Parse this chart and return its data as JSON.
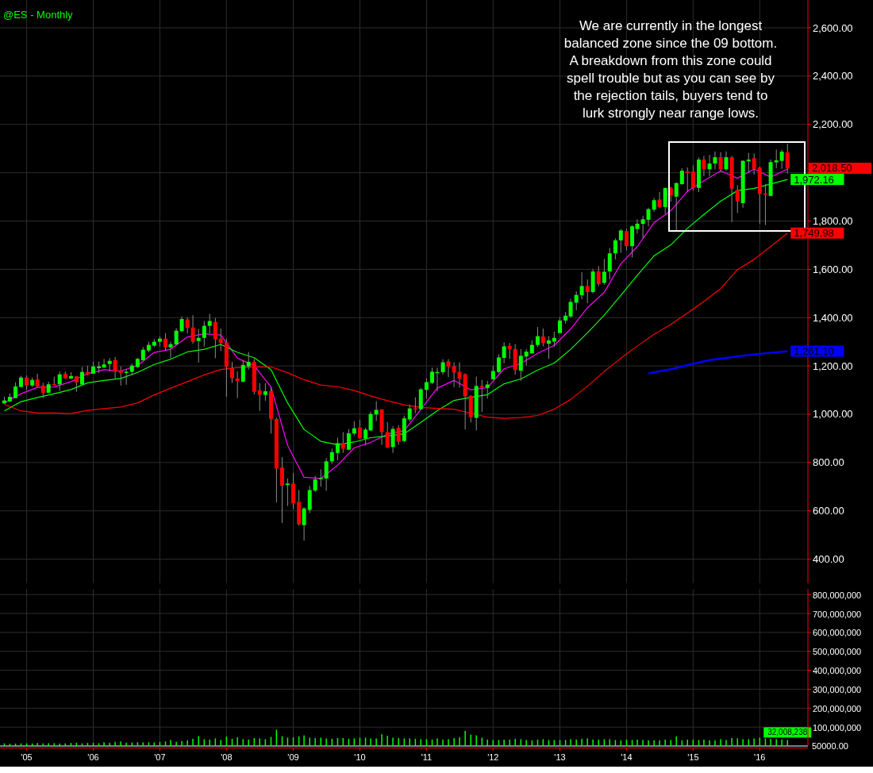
{
  "chart_data": [
    {
      "type": "candlestick",
      "title": "@ES - Monthly",
      "x": [
        "2004-09",
        "2004-10",
        "2004-11",
        "2004-12",
        "2005-01",
        "2005-02",
        "2005-03",
        "2005-04",
        "2005-05",
        "2005-06",
        "2005-07",
        "2005-08",
        "2005-09",
        "2005-10",
        "2005-11",
        "2005-12",
        "2006-01",
        "2006-02",
        "2006-03",
        "2006-04",
        "2006-05",
        "2006-06",
        "2006-07",
        "2006-08",
        "2006-09",
        "2006-10",
        "2006-11",
        "2006-12",
        "2007-01",
        "2007-02",
        "2007-03",
        "2007-04",
        "2007-05",
        "2007-06",
        "2007-07",
        "2007-08",
        "2007-09",
        "2007-10",
        "2007-11",
        "2007-12",
        "2008-01",
        "2008-02",
        "2008-03",
        "2008-04",
        "2008-05",
        "2008-06",
        "2008-07",
        "2008-08",
        "2008-09",
        "2008-10",
        "2008-11",
        "2008-12",
        "2009-01",
        "2009-02",
        "2009-03",
        "2009-04",
        "2009-05",
        "2009-06",
        "2009-07",
        "2009-08",
        "2009-09",
        "2009-10",
        "2009-11",
        "2009-12",
        "2010-01",
        "2010-02",
        "2010-03",
        "2010-04",
        "2010-05",
        "2010-06",
        "2010-07",
        "2010-08",
        "2010-09",
        "2010-10",
        "2010-11",
        "2010-12",
        "2011-01",
        "2011-02",
        "2011-03",
        "2011-04",
        "2011-05",
        "2011-06",
        "2011-07",
        "2011-08",
        "2011-09",
        "2011-10",
        "2011-11",
        "2011-12",
        "2012-01",
        "2012-02",
        "2012-03",
        "2012-04",
        "2012-05",
        "2012-06",
        "2012-07",
        "2012-08",
        "2012-09",
        "2012-10",
        "2012-11",
        "2012-12",
        "2013-01",
        "2013-02",
        "2013-03",
        "2013-04",
        "2013-05",
        "2013-06",
        "2013-07",
        "2013-08",
        "2013-09",
        "2013-10",
        "2013-11",
        "2013-12",
        "2014-01",
        "2014-02",
        "2014-03",
        "2014-04",
        "2014-05",
        "2014-06",
        "2014-07",
        "2014-08",
        "2014-09",
        "2014-10",
        "2014-11",
        "2014-12",
        "2015-01",
        "2015-02",
        "2015-03",
        "2015-04",
        "2015-05",
        "2015-06",
        "2015-07",
        "2015-08",
        "2015-09",
        "2015-10",
        "2015-11",
        "2015-12",
        "2016-01",
        "2016-02",
        "2016-03",
        "2016-04",
        "2016-05",
        "2016-06"
      ],
      "ohlc": [
        [
          1045,
          1073,
          1043,
          1057
        ],
        [
          1053,
          1086,
          1050,
          1072
        ],
        [
          1067,
          1132,
          1067,
          1115
        ],
        [
          1113,
          1159,
          1111,
          1152
        ],
        [
          1152,
          1161,
          1100,
          1119
        ],
        [
          1119,
          1152,
          1113,
          1142
        ],
        [
          1144,
          1168,
          1113,
          1115
        ],
        [
          1119,
          1130,
          1067,
          1089
        ],
        [
          1089,
          1135,
          1089,
          1124
        ],
        [
          1125,
          1155,
          1120,
          1122
        ],
        [
          1124,
          1177,
          1097,
          1165
        ],
        [
          1168,
          1177,
          1146,
          1149
        ],
        [
          1148,
          1174,
          1146,
          1158
        ],
        [
          1157,
          1159,
          1093,
          1132
        ],
        [
          1123,
          1196,
          1123,
          1175
        ],
        [
          1175,
          1201,
          1161,
          1165
        ],
        [
          1168,
          1218,
          1168,
          1198
        ],
        [
          1191,
          1218,
          1170,
          1198
        ],
        [
          1194,
          1229,
          1192,
          1206
        ],
        [
          1208,
          1232,
          1177,
          1221
        ],
        [
          1224,
          1237,
          1146,
          1176
        ],
        [
          1181,
          1198,
          1119,
          1171
        ],
        [
          1171,
          1188,
          1122,
          1176
        ],
        [
          1176,
          1210,
          1162,
          1201
        ],
        [
          1196,
          1234,
          1192,
          1229
        ],
        [
          1224,
          1278,
          1223,
          1267
        ],
        [
          1264,
          1300,
          1256,
          1287
        ],
        [
          1284,
          1311,
          1278,
          1300
        ],
        [
          1300,
          1322,
          1281,
          1313
        ],
        [
          1313,
          1336,
          1262,
          1278
        ],
        [
          1277,
          1300,
          1232,
          1290
        ],
        [
          1289,
          1357,
          1289,
          1346
        ],
        [
          1344,
          1405,
          1340,
          1394
        ],
        [
          1392,
          1402,
          1335,
          1357
        ],
        [
          1359,
          1410,
          1292,
          1300
        ],
        [
          1303,
          1353,
          1214,
          1316
        ],
        [
          1316,
          1386,
          1280,
          1366
        ],
        [
          1366,
          1416,
          1335,
          1386
        ],
        [
          1382,
          1399,
          1232,
          1311
        ],
        [
          1313,
          1355,
          1262,
          1295
        ],
        [
          1297,
          1313,
          1072,
          1196
        ],
        [
          1190,
          1217,
          1130,
          1149
        ],
        [
          1148,
          1177,
          1067,
          1138
        ],
        [
          1135,
          1223,
          1130,
          1204
        ],
        [
          1198,
          1258,
          1185,
          1217
        ],
        [
          1217,
          1229,
          1082,
          1093
        ],
        [
          1099,
          1129,
          1014,
          1080
        ],
        [
          1080,
          1129,
          1056,
          1095
        ],
        [
          1095,
          1113,
          920,
          981
        ],
        [
          980,
          986,
          635,
          775
        ],
        [
          779,
          822,
          550,
          704
        ],
        [
          707,
          734,
          620,
          713
        ],
        [
          713,
          756,
          607,
          631
        ],
        [
          637,
          686,
          539,
          545
        ],
        [
          541,
          615,
          477,
          610
        ],
        [
          604,
          703,
          591,
          686
        ],
        [
          684,
          745,
          678,
          730
        ],
        [
          731,
          772,
          700,
          736
        ],
        [
          734,
          818,
          683,
          805
        ],
        [
          805,
          858,
          795,
          843
        ],
        [
          840,
          903,
          809,
          880
        ],
        [
          880,
          926,
          840,
          857
        ],
        [
          853,
          939,
          851,
          921
        ],
        [
          920,
          972,
          911,
          942
        ],
        [
          945,
          977,
          898,
          900
        ],
        [
          899,
          944,
          873,
          936
        ],
        [
          933,
          1010,
          930,
          1001
        ],
        [
          999,
          1054,
          972,
          1018
        ],
        [
          1020,
          1021,
          873,
          926
        ],
        [
          926,
          968,
          860,
          862
        ],
        [
          864,
          950,
          840,
          939
        ],
        [
          944,
          955,
          873,
          886
        ],
        [
          889,
          994,
          884,
          983
        ],
        [
          979,
          1040,
          970,
          1024
        ],
        [
          1024,
          1070,
          1005,
          1021
        ],
        [
          1021,
          1109,
          1016,
          1103
        ],
        [
          1101,
          1149,
          1065,
          1133
        ],
        [
          1130,
          1193,
          1125,
          1176
        ],
        [
          1172,
          1193,
          1095,
          1175
        ],
        [
          1174,
          1228,
          1164,
          1215
        ],
        [
          1219,
          1228,
          1153,
          1197
        ],
        [
          1199,
          1215,
          1112,
          1173
        ],
        [
          1175,
          1215,
          1111,
          1147
        ],
        [
          1166,
          1169,
          937,
          1074
        ],
        [
          1076,
          1079,
          966,
          988
        ],
        [
          985,
          1156,
          933,
          1117
        ],
        [
          1117,
          1142,
          1010,
          1110
        ],
        [
          1109,
          1138,
          1065,
          1123
        ],
        [
          1145,
          1200,
          1142,
          1179
        ],
        [
          1175,
          1248,
          1169,
          1235
        ],
        [
          1233,
          1298,
          1211,
          1281
        ],
        [
          1283,
          1295,
          1229,
          1270
        ],
        [
          1270,
          1290,
          1163,
          1183
        ],
        [
          1180,
          1270,
          1138,
          1242
        ],
        [
          1239,
          1270,
          1202,
          1259
        ],
        [
          1252,
          1306,
          1251,
          1287
        ],
        [
          1287,
          1361,
          1279,
          1323
        ],
        [
          1322,
          1355,
          1281,
          1295
        ],
        [
          1292,
          1323,
          1229,
          1306
        ],
        [
          1301,
          1342,
          1279,
          1316
        ],
        [
          1336,
          1402,
          1336,
          1388
        ],
        [
          1388,
          1423,
          1375,
          1408
        ],
        [
          1405,
          1478,
          1399,
          1465
        ],
        [
          1462,
          1509,
          1430,
          1494
        ],
        [
          1493,
          1588,
          1476,
          1531
        ],
        [
          1531,
          1558,
          1460,
          1506
        ],
        [
          1506,
          1602,
          1500,
          1591
        ],
        [
          1592,
          1613,
          1531,
          1539
        ],
        [
          1544,
          1643,
          1536,
          1590
        ],
        [
          1591,
          1688,
          1558,
          1666
        ],
        [
          1666,
          1728,
          1641,
          1720
        ],
        [
          1720,
          1767,
          1668,
          1761
        ],
        [
          1758,
          1767,
          1679,
          1696
        ],
        [
          1696,
          1783,
          1649,
          1778
        ],
        [
          1767,
          1807,
          1748,
          1789
        ],
        [
          1788,
          1822,
          1728,
          1807
        ],
        [
          1805,
          1855,
          1778,
          1849
        ],
        [
          1847,
          1896,
          1838,
          1886
        ],
        [
          1889,
          1920,
          1855,
          1858
        ],
        [
          1858,
          1940,
          1829,
          1936
        ],
        [
          1937,
          1942,
          1880,
          1906
        ],
        [
          1901,
          1959,
          1759,
          1957
        ],
        [
          1953,
          2019,
          1950,
          2008
        ],
        [
          2005,
          2022,
          1920,
          1999
        ],
        [
          2005,
          2030,
          1926,
          1937
        ],
        [
          1937,
          2063,
          1920,
          2054
        ],
        [
          2054,
          2069,
          1986,
          2014
        ],
        [
          2014,
          2074,
          1986,
          2038
        ],
        [
          2038,
          2088,
          2014,
          2064
        ],
        [
          2064,
          2085,
          2003,
          2014
        ],
        [
          2014,
          2088,
          2008,
          2064
        ],
        [
          2064,
          2069,
          1796,
          1934
        ],
        [
          1928,
          1948,
          1833,
          1882
        ],
        [
          1874,
          2052,
          1855,
          2049
        ],
        [
          2047,
          2082,
          2003,
          2054
        ],
        [
          2060,
          2080,
          1992,
          2016
        ],
        [
          2021,
          2025,
          1789,
          1912
        ],
        [
          1914,
          1953,
          1783,
          1911
        ],
        [
          1904,
          2055,
          1902,
          2044
        ],
        [
          2043,
          2096,
          2019,
          2051
        ],
        [
          2049,
          2096,
          2016,
          2087
        ],
        [
          2084,
          2120,
          1997,
          2018.5
        ]
      ],
      "series": [
        {
          "type": "line",
          "color": "#ff00ff",
          "x": [
            "2004-09",
            "2004-12",
            "2005-03",
            "2005-06",
            "2005-09",
            "2005-12",
            "2006-03",
            "2006-06",
            "2006-09",
            "2006-12",
            "2007-03",
            "2007-06",
            "2007-09",
            "2007-12",
            "2008-03",
            "2008-06",
            "2008-09",
            "2008-12",
            "2009-03",
            "2009-06",
            "2009-09",
            "2009-12",
            "2010-03",
            "2010-06",
            "2010-09",
            "2010-12",
            "2011-03",
            "2011-06",
            "2011-09",
            "2011-12",
            "2012-03",
            "2012-06",
            "2012-09",
            "2012-12",
            "2013-03",
            "2013-06",
            "2013-09",
            "2013-12",
            "2014-03",
            "2014-06",
            "2014-09",
            "2014-12",
            "2015-03",
            "2015-06",
            "2015-09",
            "2015-12",
            "2016-03",
            "2016-06"
          ],
          "values": [
            1047,
            1085,
            1111,
            1113,
            1135,
            1168,
            1184,
            1179,
            1201,
            1256,
            1269,
            1320,
            1333,
            1328,
            1232,
            1201,
            1113,
            871,
            739,
            734,
            789,
            861,
            883,
            918,
            932,
            1020,
            1108,
            1140,
            1101,
            1110,
            1188,
            1210,
            1252,
            1285,
            1353,
            1441,
            1505,
            1623,
            1694,
            1793,
            1843,
            1923,
            1967,
            2008,
            1977,
            2015,
            1982,
            2015
          ]
        },
        {
          "type": "line",
          "color": "#00ff00",
          "x": [
            "2004-09",
            "2004-12",
            "2005-03",
            "2005-06",
            "2005-09",
            "2005-12",
            "2006-03",
            "2006-06",
            "2006-09",
            "2006-12",
            "2007-03",
            "2007-06",
            "2007-09",
            "2007-12",
            "2008-03",
            "2008-06",
            "2008-09",
            "2008-12",
            "2009-03",
            "2009-06",
            "2009-09",
            "2009-12",
            "2010-03",
            "2010-06",
            "2010-09",
            "2010-12",
            "2011-03",
            "2011-06",
            "2011-09",
            "2011-12",
            "2012-03",
            "2012-06",
            "2012-09",
            "2012-12",
            "2013-03",
            "2013-06",
            "2013-09",
            "2013-12",
            "2014-03",
            "2014-06",
            "2014-09",
            "2014-12",
            "2015-03",
            "2015-06",
            "2015-09",
            "2015-12",
            "2016-03",
            "2016-06"
          ],
          "values": [
            1014,
            1052,
            1069,
            1085,
            1102,
            1130,
            1140,
            1148,
            1173,
            1206,
            1228,
            1258,
            1269,
            1289,
            1256,
            1234,
            1185,
            1047,
            937,
            888,
            874,
            885,
            903,
            910,
            919,
            966,
            1015,
            1057,
            1070,
            1081,
            1126,
            1146,
            1183,
            1212,
            1269,
            1337,
            1410,
            1492,
            1575,
            1656,
            1701,
            1770,
            1827,
            1882,
            1926,
            1935,
            1953,
            1972.16
          ],
          "value_labels": [
            null,
            null,
            null,
            null,
            null,
            null,
            null,
            null,
            null,
            null,
            null,
            null,
            null,
            null,
            null,
            null,
            null,
            null,
            null,
            null,
            null,
            null,
            null,
            null,
            null,
            null,
            null,
            null,
            null,
            null,
            null,
            null,
            null,
            null,
            null,
            null,
            null,
            null,
            null,
            null,
            null,
            null,
            null,
            null,
            null,
            null,
            null,
            "1,972.16"
          ]
        },
        {
          "type": "line",
          "color": "#ff0000",
          "x": [
            "2004-09",
            "2004-12",
            "2005-03",
            "2005-06",
            "2005-09",
            "2005-12",
            "2006-03",
            "2006-06",
            "2006-09",
            "2006-12",
            "2007-03",
            "2007-06",
            "2007-09",
            "2007-12",
            "2008-03",
            "2008-06",
            "2008-09",
            "2008-12",
            "2009-03",
            "2009-06",
            "2009-09",
            "2009-12",
            "2010-03",
            "2010-06",
            "2010-09",
            "2010-12",
            "2011-03",
            "2011-06",
            "2011-09",
            "2011-12",
            "2012-03",
            "2012-06",
            "2012-09",
            "2012-12",
            "2013-03",
            "2013-06",
            "2013-09",
            "2013-12",
            "2014-03",
            "2014-06",
            "2014-09",
            "2014-12",
            "2015-03",
            "2015-06",
            "2015-09",
            "2015-12",
            "2016-03",
            "2016-06"
          ],
          "values": [
            1041,
            1014,
            1005,
            1005,
            1003,
            1016,
            1023,
            1030,
            1047,
            1080,
            1108,
            1135,
            1163,
            1185,
            1193,
            1196,
            1196,
            1172,
            1143,
            1121,
            1114,
            1098,
            1076,
            1056,
            1039,
            1028,
            1024,
            1021,
            1004,
            988,
            983,
            986,
            995,
            1021,
            1061,
            1116,
            1177,
            1232,
            1282,
            1331,
            1372,
            1419,
            1467,
            1520,
            1599,
            1641,
            1695,
            1749.98
          ],
          "value_labels": [
            null,
            null,
            null,
            null,
            null,
            null,
            null,
            null,
            null,
            null,
            null,
            null,
            null,
            null,
            null,
            null,
            null,
            null,
            null,
            null,
            null,
            null,
            null,
            null,
            null,
            null,
            null,
            null,
            null,
            null,
            null,
            null,
            null,
            null,
            null,
            null,
            null,
            null,
            null,
            null,
            null,
            null,
            null,
            null,
            null,
            null,
            null,
            "1,749.98"
          ]
        },
        {
          "type": "line",
          "color": "#0000ff",
          "x": [
            "2014-05",
            "2014-09",
            "2014-11",
            "2015-04",
            "2015-09",
            "2016-01",
            "2016-06"
          ],
          "values": [
            1169,
            1186,
            1198,
            1224,
            1240,
            1250,
            1261.1
          ],
          "value_labels": [
            null,
            null,
            null,
            null,
            null,
            null,
            "1,261.10"
          ]
        }
      ],
      "xlim": [
        "2004-08-08",
        "2016-09-21"
      ],
      "xticks": [
        {
          "value": "2005-01",
          "label": null
        },
        {
          "value": "2006-01",
          "label": null
        },
        {
          "value": "2007-01",
          "label": null
        },
        {
          "value": "2008-01",
          "label": null
        },
        {
          "value": "2009-01",
          "label": null
        },
        {
          "value": "2010-01",
          "label": null
        },
        {
          "value": "2011-01",
          "label": null
        },
        {
          "value": "2012-01",
          "label": null
        },
        {
          "value": "2013-01",
          "label": null
        },
        {
          "value": "2014-01",
          "label": null
        },
        {
          "value": "2015-01",
          "label": null
        },
        {
          "value": "2016-01",
          "label": null
        }
      ],
      "ylim": [
        300,
        2715
      ],
      "yticks": [
        {
          "value": 400,
          "label": "400.00"
        },
        {
          "value": 600,
          "label": "600.00"
        },
        {
          "value": 800,
          "label": "800.00"
        },
        {
          "value": 1000,
          "label": "1,000.00"
        },
        {
          "value": 1200,
          "label": "1,200.00"
        },
        {
          "value": 1400,
          "label": "1,400.00"
        },
        {
          "value": 1600,
          "label": "1,600.00"
        },
        {
          "value": 1800,
          "label": "1,800.00"
        },
        {
          "value": 2000,
          "label": null
        },
        {
          "value": 2200,
          "label": "2,200.00"
        },
        {
          "value": 2400,
          "label": "2,400.00"
        },
        {
          "value": 2600,
          "label": "2,600.00"
        }
      ],
      "grid": true,
      "tick_labels": "y",
      "annotations": [
        "We are currently in the longest balanced zone since the 09 bottom. A breakdown from this zone could spell trouble but as you can see by the rejection tails, buyers tend to lurk strongly near range lows."
      ],
      "value_labels": [
        null,
        null,
        null,
        null,
        null,
        null,
        null,
        null,
        null,
        null,
        null,
        null,
        null,
        null,
        null,
        null,
        null,
        null,
        null,
        null,
        null,
        null,
        null,
        null,
        null,
        null,
        null,
        null,
        null,
        null,
        null,
        null,
        null,
        null,
        null,
        null,
        null,
        null,
        null,
        null,
        null,
        null,
        null,
        null,
        null,
        null,
        null,
        null,
        null,
        null,
        null,
        null,
        null,
        null,
        null,
        null,
        null,
        null,
        null,
        null,
        null,
        null,
        null,
        null,
        null,
        null,
        null,
        null,
        null,
        null,
        null,
        null,
        null,
        null,
        null,
        null,
        null,
        null,
        null,
        null,
        null,
        null,
        null,
        null,
        null,
        null,
        null,
        null,
        null,
        null,
        null,
        null,
        null,
        null,
        null,
        null,
        null,
        null,
        null,
        null,
        null,
        null,
        null,
        null,
        null,
        null,
        null,
        null,
        null,
        null,
        null,
        null,
        null,
        null,
        null,
        null,
        null,
        null,
        null,
        null,
        null,
        null,
        null,
        null,
        null,
        null,
        null,
        null,
        null,
        null,
        null,
        null,
        null,
        null,
        null,
        null,
        null,
        null,
        null,
        null,
        null,
        "2,018.50"
      ]
    },
    {
      "type": "bar",
      "color": "#00ff00",
      "x": [
        "2004-09",
        "2004-10",
        "2004-11",
        "2004-12",
        "2005-01",
        "2005-02",
        "2005-03",
        "2005-04",
        "2005-05",
        "2005-06",
        "2005-07",
        "2005-08",
        "2005-09",
        "2005-10",
        "2005-11",
        "2005-12",
        "2006-01",
        "2006-02",
        "2006-03",
        "2006-04",
        "2006-05",
        "2006-06",
        "2006-07",
        "2006-08",
        "2006-09",
        "2006-10",
        "2006-11",
        "2006-12",
        "2007-01",
        "2007-02",
        "2007-03",
        "2007-04",
        "2007-05",
        "2007-06",
        "2007-07",
        "2007-08",
        "2007-09",
        "2007-10",
        "2007-11",
        "2007-12",
        "2008-01",
        "2008-02",
        "2008-03",
        "2008-04",
        "2008-05",
        "2008-06",
        "2008-07",
        "2008-08",
        "2008-09",
        "2008-10",
        "2008-11",
        "2008-12",
        "2009-01",
        "2009-02",
        "2009-03",
        "2009-04",
        "2009-05",
        "2009-06",
        "2009-07",
        "2009-08",
        "2009-09",
        "2009-10",
        "2009-11",
        "2009-12",
        "2010-01",
        "2010-02",
        "2010-03",
        "2010-04",
        "2010-05",
        "2010-06",
        "2010-07",
        "2010-08",
        "2010-09",
        "2010-10",
        "2010-11",
        "2010-12",
        "2011-01",
        "2011-02",
        "2011-03",
        "2011-04",
        "2011-05",
        "2011-06",
        "2011-07",
        "2011-08",
        "2011-09",
        "2011-10",
        "2011-11",
        "2011-12",
        "2012-01",
        "2012-02",
        "2012-03",
        "2012-04",
        "2012-05",
        "2012-06",
        "2012-07",
        "2012-08",
        "2012-09",
        "2012-10",
        "2012-11",
        "2012-12",
        "2013-01",
        "2013-02",
        "2013-03",
        "2013-04",
        "2013-05",
        "2013-06",
        "2013-07",
        "2013-08",
        "2013-09",
        "2013-10",
        "2013-11",
        "2013-12",
        "2014-01",
        "2014-02",
        "2014-03",
        "2014-04",
        "2014-05",
        "2014-06",
        "2014-07",
        "2014-08",
        "2014-09",
        "2014-10",
        "2014-11",
        "2014-12",
        "2015-01",
        "2015-02",
        "2015-03",
        "2015-04",
        "2015-05",
        "2015-06",
        "2015-07",
        "2015-08",
        "2015-09",
        "2015-10",
        "2015-11",
        "2015-12",
        "2016-01",
        "2016-02",
        "2016-03",
        "2016-04",
        "2016-05",
        "2016-06"
      ],
      "values": [
        14000000,
        12000000,
        13000000,
        14000000,
        14000000,
        13000000,
        16000000,
        14000000,
        15000000,
        15000000,
        13000000,
        14000000,
        16000000,
        17000000,
        14000000,
        16000000,
        17000000,
        15000000,
        20000000,
        17000000,
        22000000,
        24000000,
        18000000,
        18000000,
        20000000,
        19000000,
        20000000,
        19000000,
        22000000,
        24000000,
        32000000,
        22000000,
        26000000,
        30000000,
        38000000,
        52000000,
        36000000,
        34000000,
        40000000,
        32000000,
        50000000,
        38000000,
        46000000,
        36000000,
        34000000,
        42000000,
        40000000,
        36000000,
        48000000,
        86000000,
        52000000,
        44000000,
        46000000,
        50000000,
        56000000,
        44000000,
        42000000,
        44000000,
        40000000,
        38000000,
        42000000,
        42000000,
        38000000,
        40000000,
        44000000,
        44000000,
        40000000,
        40000000,
        62000000,
        54000000,
        44000000,
        42000000,
        40000000,
        40000000,
        38000000,
        36000000,
        36000000,
        34000000,
        40000000,
        34000000,
        36000000,
        42000000,
        46000000,
        80000000,
        60000000,
        56000000,
        44000000,
        34000000,
        32000000,
        32000000,
        34000000,
        34000000,
        38000000,
        36000000,
        32000000,
        30000000,
        34000000,
        36000000,
        32000000,
        32000000,
        32000000,
        32000000,
        36000000,
        34000000,
        38000000,
        40000000,
        34000000,
        34000000,
        36000000,
        36000000,
        32000000,
        30000000,
        34000000,
        32000000,
        34000000,
        32000000,
        30000000,
        30000000,
        30000000,
        34000000,
        32000000,
        50000000,
        30000000,
        34000000,
        34000000,
        32000000,
        34000000,
        30000000,
        30000000,
        36000000,
        32000000,
        42000000,
        40000000,
        36000000,
        36000000,
        40000000,
        44000000,
        40000000,
        38000000,
        36000000,
        34000000,
        32008238
      ],
      "value_labels": [
        null,
        null,
        null,
        null,
        null,
        null,
        null,
        null,
        null,
        null,
        null,
        null,
        null,
        null,
        null,
        null,
        null,
        null,
        null,
        null,
        null,
        null,
        null,
        null,
        null,
        null,
        null,
        null,
        null,
        null,
        null,
        null,
        null,
        null,
        null,
        null,
        null,
        null,
        null,
        null,
        null,
        null,
        null,
        null,
        null,
        null,
        null,
        null,
        null,
        null,
        null,
        null,
        null,
        null,
        null,
        null,
        null,
        null,
        null,
        null,
        null,
        null,
        null,
        null,
        null,
        null,
        null,
        null,
        null,
        null,
        null,
        null,
        null,
        null,
        null,
        null,
        null,
        null,
        null,
        null,
        null,
        null,
        null,
        null,
        null,
        null,
        null,
        null,
        null,
        null,
        null,
        null,
        null,
        null,
        null,
        null,
        null,
        null,
        null,
        null,
        null,
        null,
        null,
        null,
        null,
        null,
        null,
        null,
        null,
        null,
        null,
        null,
        null,
        null,
        null,
        null,
        null,
        null,
        null,
        null,
        null,
        null,
        null,
        null,
        null,
        null,
        null,
        null,
        null,
        null,
        null,
        null,
        null,
        null,
        null,
        null,
        null,
        null,
        null,
        null,
        null,
        "32,008,238"
      ],
      "xlim": [
        "2004-08-08",
        "2016-09-21"
      ],
      "xticks": [
        {
          "value": "2005-01",
          "label": "'05"
        },
        {
          "value": "2006-01",
          "label": "'06"
        },
        {
          "value": "2007-01",
          "label": "'07"
        },
        {
          "value": "2008-01",
          "label": "'08"
        },
        {
          "value": "2009-01",
          "label": "'09"
        },
        {
          "value": "2010-01",
          "label": "'10"
        },
        {
          "value": "2011-01",
          "label": "'11"
        },
        {
          "value": "2012-01",
          "label": "'12"
        },
        {
          "value": "2013-01",
          "label": "'13"
        },
        {
          "value": "2014-01",
          "label": "'14"
        },
        {
          "value": "2015-01",
          "label": "'15"
        },
        {
          "value": "2016-01",
          "label": "'16"
        }
      ],
      "ylim": [
        0,
        830000000
      ],
      "yticks": [
        {
          "value": 100000000,
          "label": "100,000,000"
        },
        {
          "value": 200000000,
          "label": "200,000,000"
        },
        {
          "value": 300000000,
          "label": "300,000,000"
        },
        {
          "value": 400000000,
          "label": "400,000,000"
        },
        {
          "value": 500000000,
          "label": "500,000,000"
        },
        {
          "value": 600000000,
          "label": "600,000,000"
        },
        {
          "value": 700000000,
          "label": "700,000,000"
        },
        {
          "value": 800000000,
          "label": "800,000,000"
        }
      ],
      "grid": true,
      "ref_lines": [
        {
          "axis": "y",
          "value": 50000,
          "label": "50000.00",
          "color": "#ffffff"
        }
      ]
    }
  ]
}
